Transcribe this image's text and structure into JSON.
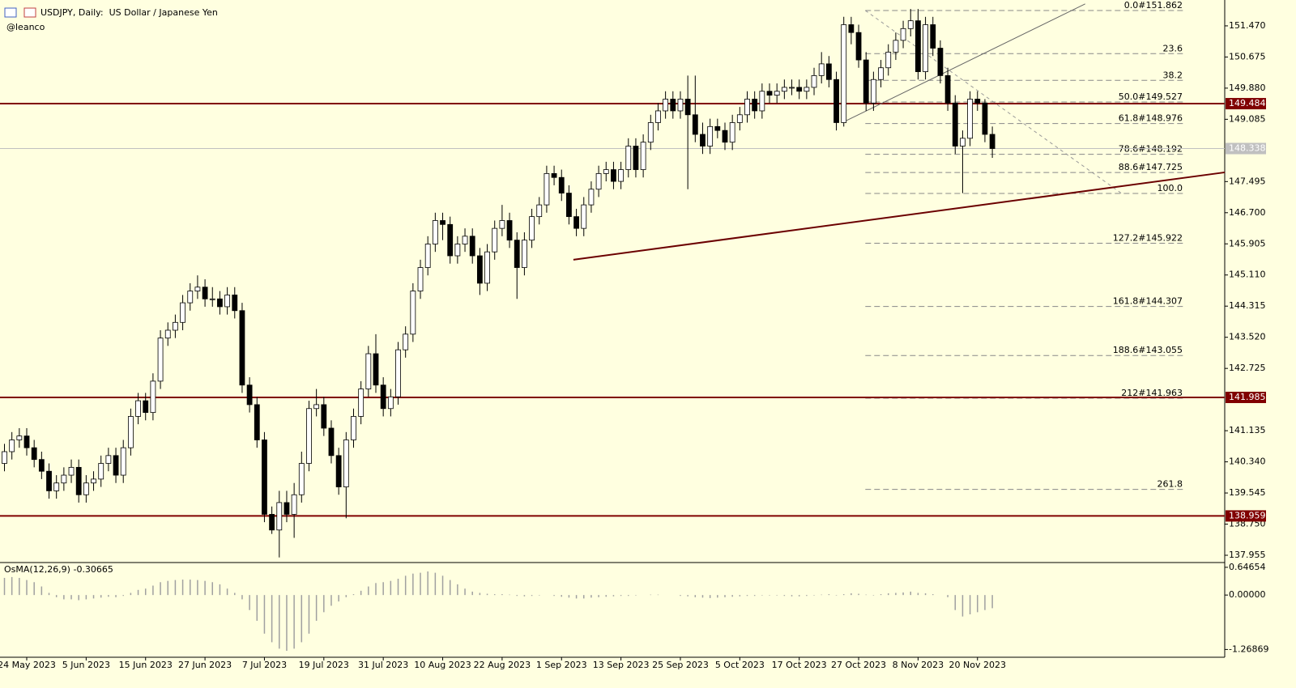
{
  "chart_data": {
    "type": "candlestick",
    "title": "USDJPY, Daily:  US Dollar / Japanese Yen",
    "subtitle": "@leanco",
    "categories": [
      null,
      null,
      null,
      "24 May 2023",
      null,
      null,
      null,
      null,
      null,
      null,
      null,
      "5 Jun 2023",
      null,
      null,
      null,
      null,
      null,
      null,
      null,
      "15 Jun 2023",
      null,
      null,
      null,
      null,
      null,
      null,
      null,
      "27 Jun 2023",
      null,
      null,
      null,
      null,
      null,
      null,
      null,
      "7 Jul 2023",
      null,
      null,
      null,
      null,
      null,
      null,
      null,
      "19 Jul 2023",
      null,
      null,
      null,
      null,
      null,
      null,
      null,
      "31 Jul 2023",
      null,
      null,
      null,
      null,
      null,
      null,
      null,
      "10 Aug 2023",
      null,
      null,
      null,
      null,
      null,
      null,
      null,
      "22 Aug 2023",
      null,
      null,
      null,
      null,
      null,
      null,
      null,
      "1 Sep 2023",
      null,
      null,
      null,
      null,
      null,
      null,
      null,
      "13 Sep 2023",
      null,
      null,
      null,
      null,
      null,
      null,
      null,
      "25 Sep 2023",
      null,
      null,
      null,
      null,
      null,
      null,
      null,
      "5 Oct 2023",
      null,
      null,
      null,
      null,
      null,
      null,
      null,
      "17 Oct 2023",
      null,
      null,
      null,
      null,
      null,
      null,
      null,
      "27 Oct 2023",
      null,
      null,
      null,
      null,
      null,
      null,
      null,
      "8 Nov 2023",
      null,
      null,
      null,
      null,
      null,
      null,
      null,
      "20 Nov 2023",
      null,
      null
    ],
    "ohlc": [
      [
        140.3,
        140.8,
        140.1,
        140.6
      ],
      [
        140.6,
        141.1,
        140.4,
        140.9
      ],
      [
        140.9,
        141.2,
        140.7,
        141.0
      ],
      [
        141.0,
        141.2,
        140.5,
        140.7
      ],
      [
        140.7,
        140.9,
        140.2,
        140.4
      ],
      [
        140.4,
        140.6,
        139.9,
        140.1
      ],
      [
        140.1,
        140.3,
        139.4,
        139.6
      ],
      [
        139.6,
        140.0,
        139.4,
        139.8
      ],
      [
        139.8,
        140.2,
        139.6,
        140.0
      ],
      [
        140.0,
        140.4,
        139.8,
        140.2
      ],
      [
        140.2,
        140.4,
        139.3,
        139.5
      ],
      [
        139.5,
        140.0,
        139.3,
        139.8
      ],
      [
        139.8,
        140.1,
        139.6,
        139.9
      ],
      [
        139.9,
        140.5,
        139.7,
        140.3
      ],
      [
        140.3,
        140.7,
        140.1,
        140.5
      ],
      [
        140.5,
        140.7,
        139.8,
        140.0
      ],
      [
        140.0,
        140.9,
        139.8,
        140.7
      ],
      [
        140.7,
        141.7,
        140.5,
        141.5
      ],
      [
        141.5,
        142.1,
        141.3,
        141.9
      ],
      [
        141.9,
        142.1,
        141.4,
        141.6
      ],
      [
        141.6,
        142.6,
        141.4,
        142.4
      ],
      [
        142.4,
        143.7,
        142.2,
        143.5
      ],
      [
        143.5,
        143.9,
        143.3,
        143.7
      ],
      [
        143.7,
        144.1,
        143.5,
        143.9
      ],
      [
        143.9,
        144.6,
        143.7,
        144.4
      ],
      [
        144.4,
        144.9,
        144.2,
        144.7
      ],
      [
        144.7,
        145.1,
        144.5,
        144.8
      ],
      [
        144.8,
        145.0,
        144.3,
        144.5
      ],
      [
        144.5,
        144.8,
        144.3,
        144.5
      ],
      [
        144.5,
        144.7,
        144.1,
        144.3
      ],
      [
        144.3,
        144.8,
        144.1,
        144.6
      ],
      [
        144.6,
        144.8,
        144.0,
        144.2
      ],
      [
        144.2,
        144.4,
        142.1,
        142.3
      ],
      [
        142.3,
        142.5,
        141.6,
        141.8
      ],
      [
        141.8,
        142.0,
        140.7,
        140.9
      ],
      [
        140.9,
        141.1,
        138.8,
        139.0
      ],
      [
        139.0,
        139.2,
        138.5,
        138.6
      ],
      [
        138.6,
        139.6,
        137.9,
        139.3
      ],
      [
        139.3,
        139.6,
        138.8,
        139.0
      ],
      [
        139.0,
        139.8,
        138.4,
        139.5
      ],
      [
        139.5,
        140.6,
        139.3,
        140.3
      ],
      [
        140.3,
        141.9,
        140.1,
        141.7
      ],
      [
        141.7,
        142.2,
        141.5,
        141.8
      ],
      [
        141.8,
        142.0,
        141.0,
        141.2
      ],
      [
        141.2,
        141.4,
        140.3,
        140.5
      ],
      [
        140.5,
        140.7,
        139.5,
        139.7
      ],
      [
        139.7,
        141.1,
        138.9,
        140.9
      ],
      [
        140.9,
        141.7,
        140.7,
        141.5
      ],
      [
        141.5,
        142.4,
        141.3,
        142.2
      ],
      [
        142.2,
        143.3,
        142.0,
        143.1
      ],
      [
        143.1,
        143.6,
        142.1,
        142.3
      ],
      [
        142.3,
        142.5,
        141.5,
        141.7
      ],
      [
        141.7,
        142.2,
        141.5,
        142.0
      ],
      [
        142.0,
        143.4,
        141.8,
        143.2
      ],
      [
        143.2,
        143.8,
        143.0,
        143.6
      ],
      [
        143.6,
        144.9,
        143.4,
        144.7
      ],
      [
        144.7,
        145.5,
        144.5,
        145.3
      ],
      [
        145.3,
        146.1,
        145.1,
        145.9
      ],
      [
        145.9,
        146.7,
        145.7,
        146.5
      ],
      [
        146.5,
        146.7,
        146.0,
        146.4
      ],
      [
        146.4,
        146.6,
        145.4,
        145.6
      ],
      [
        145.6,
        146.1,
        145.4,
        145.9
      ],
      [
        145.9,
        146.3,
        145.7,
        146.1
      ],
      [
        146.1,
        146.3,
        145.4,
        145.6
      ],
      [
        145.6,
        145.8,
        144.6,
        144.9
      ],
      [
        144.9,
        145.9,
        144.7,
        145.7
      ],
      [
        145.7,
        146.5,
        145.5,
        146.3
      ],
      [
        146.3,
        146.9,
        146.1,
        146.5
      ],
      [
        146.5,
        146.7,
        145.8,
        146.0
      ],
      [
        146.0,
        146.2,
        144.5,
        145.3
      ],
      [
        145.3,
        146.2,
        145.1,
        146.0
      ],
      [
        146.0,
        146.8,
        145.8,
        146.6
      ],
      [
        146.6,
        147.1,
        146.4,
        146.9
      ],
      [
        146.9,
        147.9,
        146.7,
        147.7
      ],
      [
        147.7,
        147.9,
        147.4,
        147.6
      ],
      [
        147.6,
        147.8,
        147.0,
        147.2
      ],
      [
        147.2,
        147.4,
        146.4,
        146.6
      ],
      [
        146.6,
        146.8,
        146.1,
        146.3
      ],
      [
        146.3,
        147.1,
        146.1,
        146.9
      ],
      [
        146.9,
        147.5,
        146.7,
        147.3
      ],
      [
        147.3,
        147.9,
        147.1,
        147.7
      ],
      [
        147.7,
        148.0,
        147.5,
        147.8
      ],
      [
        147.8,
        148.0,
        147.3,
        147.5
      ],
      [
        147.5,
        148.0,
        147.3,
        147.8
      ],
      [
        147.8,
        148.6,
        147.6,
        148.4
      ],
      [
        148.4,
        148.6,
        147.6,
        147.8
      ],
      [
        147.8,
        148.7,
        147.6,
        148.5
      ],
      [
        148.5,
        149.2,
        148.3,
        149.0
      ],
      [
        149.0,
        149.5,
        148.8,
        149.3
      ],
      [
        149.3,
        149.8,
        149.1,
        149.6
      ],
      [
        149.6,
        149.8,
        149.1,
        149.3
      ],
      [
        149.3,
        149.8,
        149.1,
        149.6
      ],
      [
        149.6,
        150.2,
        147.3,
        149.2
      ],
      [
        149.2,
        150.2,
        148.5,
        148.7
      ],
      [
        148.7,
        149.0,
        148.2,
        148.4
      ],
      [
        148.4,
        149.1,
        148.2,
        148.9
      ],
      [
        148.9,
        149.1,
        148.6,
        148.8
      ],
      [
        148.8,
        149.0,
        148.3,
        148.5
      ],
      [
        148.5,
        149.2,
        148.3,
        149.0
      ],
      [
        149.0,
        149.4,
        148.8,
        149.2
      ],
      [
        149.2,
        149.8,
        149.0,
        149.6
      ],
      [
        149.6,
        149.8,
        149.1,
        149.3
      ],
      [
        149.3,
        150.0,
        149.1,
        149.8
      ],
      [
        149.8,
        150.0,
        149.5,
        149.7
      ],
      [
        149.7,
        150.0,
        149.5,
        149.8
      ],
      [
        149.8,
        150.1,
        149.6,
        149.9
      ],
      [
        149.9,
        150.1,
        149.7,
        149.9
      ],
      [
        149.9,
        150.1,
        149.6,
        149.8
      ],
      [
        149.8,
        150.1,
        149.6,
        149.9
      ],
      [
        149.9,
        150.4,
        149.7,
        150.2
      ],
      [
        150.2,
        150.8,
        150.0,
        150.5
      ],
      [
        150.5,
        150.7,
        149.9,
        150.1
      ],
      [
        150.1,
        150.3,
        148.8,
        149.0
      ],
      [
        149.0,
        151.7,
        148.9,
        151.5
      ],
      [
        151.5,
        151.7,
        151.0,
        151.3
      ],
      [
        151.3,
        151.5,
        150.4,
        150.6
      ],
      [
        150.6,
        150.8,
        149.3,
        149.5
      ],
      [
        149.5,
        150.3,
        149.3,
        150.1
      ],
      [
        150.1,
        150.6,
        149.9,
        150.4
      ],
      [
        150.4,
        151.0,
        150.2,
        150.8
      ],
      [
        150.8,
        151.3,
        150.6,
        151.1
      ],
      [
        151.1,
        151.6,
        150.9,
        151.4
      ],
      [
        151.4,
        151.9,
        151.2,
        151.6
      ],
      [
        151.6,
        151.9,
        150.1,
        150.3
      ],
      [
        150.3,
        151.7,
        150.1,
        151.5
      ],
      [
        151.5,
        151.7,
        150.7,
        150.9
      ],
      [
        150.9,
        151.1,
        150.0,
        150.2
      ],
      [
        150.2,
        150.4,
        149.3,
        149.5
      ],
      [
        149.5,
        149.7,
        148.2,
        148.4
      ],
      [
        148.4,
        148.8,
        147.2,
        148.6
      ],
      [
        148.6,
        149.8,
        148.4,
        149.6
      ],
      [
        149.6,
        149.8,
        149.3,
        149.5
      ],
      [
        149.5,
        149.6,
        148.5,
        148.7
      ],
      [
        148.7,
        148.9,
        148.1,
        148.338
      ]
    ],
    "ylim": [
      137.79,
      152.13
    ],
    "yticks": [
      {
        "value": 151.47,
        "label": "151.470"
      },
      {
        "value": 150.675,
        "label": "150.675"
      },
      {
        "value": 149.88,
        "label": "149.880"
      },
      {
        "value": 149.085,
        "label": "149.085"
      },
      {
        "value": 147.495,
        "label": "147.495"
      },
      {
        "value": 146.7,
        "label": "146.700"
      },
      {
        "value": 145.905,
        "label": "145.905"
      },
      {
        "value": 145.11,
        "label": "145.110"
      },
      {
        "value": 144.315,
        "label": "144.315"
      },
      {
        "value": 143.52,
        "label": "143.520"
      },
      {
        "value": 142.725,
        "label": "142.725"
      },
      {
        "value": 141.135,
        "label": "141.135"
      },
      {
        "value": 140.34,
        "label": "140.340"
      },
      {
        "value": 139.545,
        "label": "139.545"
      },
      {
        "value": 138.75,
        "label": "138.750"
      },
      {
        "value": 137.955,
        "label": "137.955"
      }
    ],
    "levels": [
      149.484,
      141.985,
      138.959
    ],
    "level_color": "#800000",
    "last_price": 148.338,
    "trendlines": [
      {
        "from": [
          76.6,
          145.5
        ],
        "to": [
          164.3,
          147.73
        ],
        "color": "#6b0000"
      },
      {
        "from": [
          112.8,
          149.0
        ],
        "to": [
          145.5,
          152.03
        ],
        "color": "#666666"
      }
    ],
    "fibo": {
      "from": [
        115.9,
        151.862
      ],
      "to": [
        150.4,
        147.192
      ],
      "levels": [
        {
          "value": 151.862,
          "label": "0.0#151.862"
        },
        {
          "value": 150.76,
          "label": "23.6"
        },
        {
          "value": 150.078,
          "label": "38.2"
        },
        {
          "value": 149.527,
          "label": "50.0#149.527"
        },
        {
          "value": 148.976,
          "label": "61.8#148.976"
        },
        {
          "value": 148.192,
          "label": "78.6#148.192"
        },
        {
          "value": 147.725,
          "label": "88.6#147.725"
        },
        {
          "value": 147.192,
          "label": "100.0"
        },
        {
          "value": 145.922,
          "label": "127.2#145.922"
        },
        {
          "value": 144.307,
          "label": "161.8#144.307"
        },
        {
          "value": 143.055,
          "label": "188.6#143.055"
        },
        {
          "value": 141.963,
          "label": "212#141.963"
        },
        {
          "value": 139.636,
          "label": "261.8"
        }
      ]
    },
    "osma": {
      "label": "OsMA(12,26,9) -0.30665",
      "ylim": [
        -1.45,
        0.72
      ],
      "yticks": [
        0.64654,
        {
          "value": 0,
          "label": "0.00000"
        },
        -1.26869
      ],
      "values": [
        0.4,
        0.42,
        0.4,
        0.35,
        0.3,
        0.2,
        0.05,
        -0.05,
        -0.1,
        -0.1,
        -0.12,
        -0.1,
        -0.08,
        -0.06,
        -0.04,
        -0.05,
        -0.02,
        0.05,
        0.12,
        0.15,
        0.22,
        0.3,
        0.33,
        0.35,
        0.36,
        0.36,
        0.35,
        0.33,
        0.3,
        0.25,
        0.15,
        0.05,
        -0.1,
        -0.35,
        -0.6,
        -0.9,
        -1.1,
        -1.25,
        -1.3,
        -1.25,
        -1.1,
        -0.9,
        -0.6,
        -0.4,
        -0.25,
        -0.15,
        -0.05,
        0.02,
        0.1,
        0.2,
        0.28,
        0.3,
        0.33,
        0.38,
        0.45,
        0.5,
        0.52,
        0.55,
        0.52,
        0.45,
        0.35,
        0.25,
        0.15,
        0.08,
        0.05,
        0.03,
        0.02,
        0.02,
        0.01,
        -0.02,
        -0.03,
        -0.02,
        -0.01,
        0,
        -0.02,
        -0.04,
        -0.06,
        -0.08,
        -0.08,
        -0.06,
        -0.05,
        -0.04,
        -0.03,
        -0.02,
        -0.02,
        -0.01,
        0,
        0.01,
        0.01,
        0,
        0,
        -0.02,
        -0.03,
        -0.05,
        -0.06,
        -0.07,
        -0.06,
        -0.05,
        -0.04,
        -0.03,
        -0.02,
        -0.02,
        -0.01,
        -0.01,
        -0.01,
        -0.02,
        -0.03,
        -0.03,
        -0.02,
        -0.01,
        0.01,
        0.02,
        -0.01,
        0.02,
        0.04,
        0.03,
        0.01,
        -0.01,
        0.02,
        0.04,
        0.05,
        0.06,
        0.08,
        0.05,
        0.04,
        0.02,
        0,
        -0.05,
        -0.35,
        -0.5,
        -0.45,
        -0.4,
        -0.35,
        -0.30665
      ]
    }
  }
}
